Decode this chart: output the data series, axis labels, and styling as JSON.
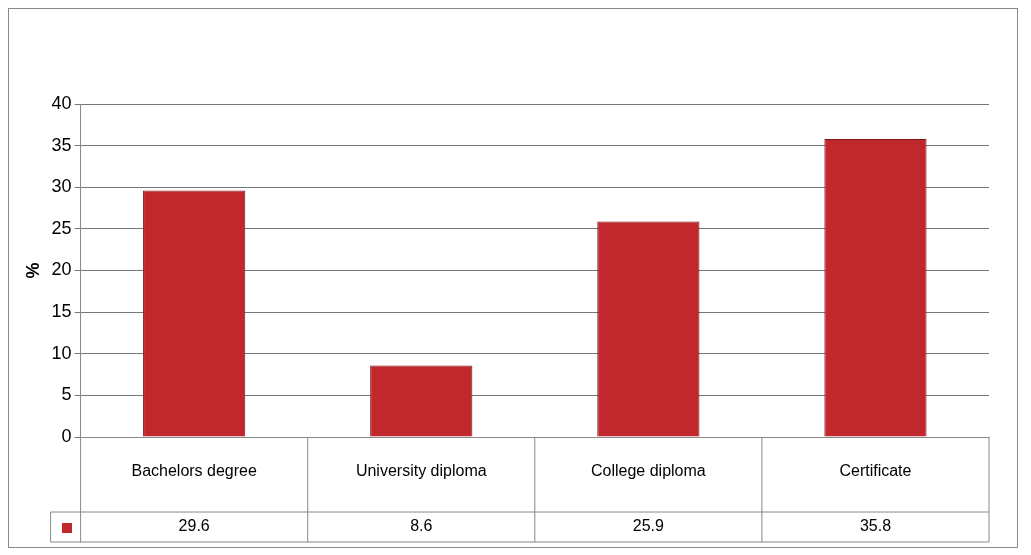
{
  "chart_data": {
    "type": "bar",
    "ylabel": "%",
    "categories": [
      "Bachelors degree",
      "University diploma",
      "College diploma",
      "Certificate"
    ],
    "series": [
      {
        "color": "#c0282d",
        "values": [
          29.6,
          8.6,
          25.9,
          35.8
        ]
      }
    ],
    "ylim": [
      0,
      40
    ],
    "yticks": [
      0,
      5,
      10,
      15,
      20,
      25,
      30,
      35,
      40
    ],
    "grid": "y",
    "legend": false,
    "data_labels": true
  }
}
